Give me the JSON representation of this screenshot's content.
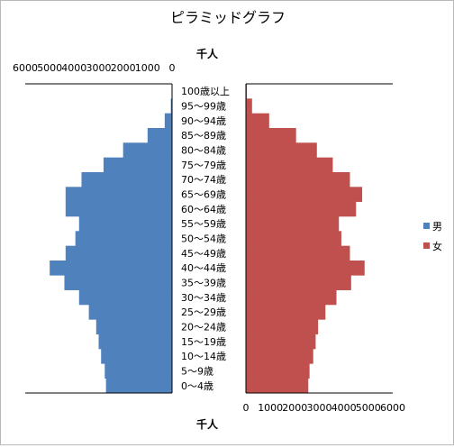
{
  "chart_data": {
    "type": "bar",
    "orientation": "horizontal-pyramid",
    "title": "ピラミッドグラフ",
    "unit_label_top": "千人",
    "unit_label_bottom": "千人",
    "categories": [
      "0〜4歳",
      "5〜9歳",
      "10〜14歳",
      "15〜19歳",
      "20〜24歳",
      "25〜29歳",
      "30〜34歳",
      "35〜39歳",
      "40〜44歳",
      "45〜49歳",
      "50〜54歳",
      "55〜59歳",
      "60〜64歳",
      "65〜69歳",
      "70〜74歳",
      "75〜79歳",
      "80〜84歳",
      "85〜89歳",
      "90〜94歳",
      "95〜99歳",
      "100歳以上"
    ],
    "series": [
      {
        "name": "男",
        "color": "#4f81bd",
        "values": [
          2700,
          2750,
          2900,
          3000,
          3100,
          3400,
          3800,
          4400,
          5000,
          4350,
          3950,
          3800,
          4350,
          4350,
          3700,
          2800,
          2000,
          1000,
          300,
          50,
          10
        ]
      },
      {
        "name": "女",
        "color": "#c0504d",
        "values": [
          2550,
          2600,
          2750,
          2850,
          2950,
          3250,
          3700,
          4300,
          4850,
          4250,
          3900,
          3800,
          4500,
          4750,
          4250,
          3550,
          2900,
          2050,
          950,
          250,
          40
        ]
      }
    ],
    "left_axis": {
      "ticks": [
        "6000",
        "5000",
        "4000",
        "3000",
        "2000",
        "1000",
        "0"
      ],
      "range": [
        0,
        6000
      ],
      "reversed": true
    },
    "right_axis": {
      "ticks": [
        "0",
        "1000",
        "2000",
        "3000",
        "4000",
        "5000",
        "6000"
      ],
      "range": [
        0,
        6000
      ]
    },
    "legend_position": "right",
    "grid": false
  }
}
